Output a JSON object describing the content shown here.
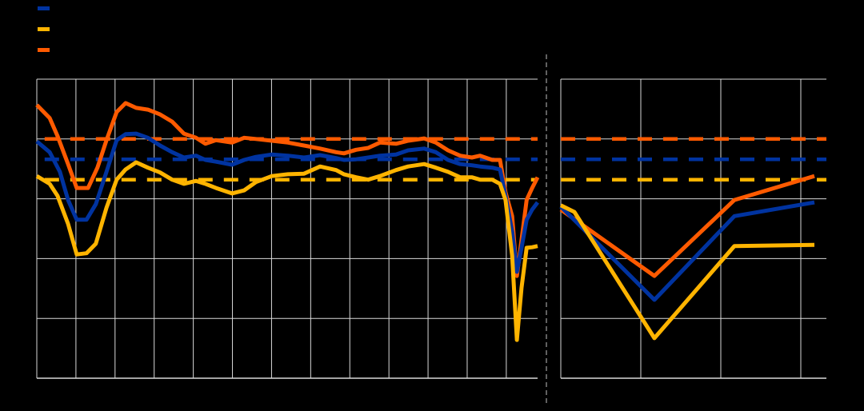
{
  "colors": {
    "background": "#000000",
    "grid": "#d9d9d9",
    "separator": "#808080"
  },
  "legend": [
    {
      "series": "blue",
      "color": "#0033a0"
    },
    {
      "series": "yellow",
      "color": "#ffb400"
    },
    {
      "series": "orange",
      "color": "#ff5a00"
    }
  ],
  "chart_data": [
    {
      "type": "line",
      "panel": "left",
      "grid": true,
      "xlim": [
        0,
        12.8
      ],
      "ylim": [
        0,
        5
      ],
      "x_gridlines": [
        0,
        1,
        2,
        3,
        4,
        5,
        6,
        7,
        8,
        9,
        10,
        11,
        12
      ],
      "y_gridlines": [
        0,
        1,
        2,
        3,
        4,
        5
      ],
      "series": [
        {
          "key": "orange",
          "color": "#ff5a00",
          "style": "solid",
          "x": [
            0,
            0.33,
            0.53,
            0.8,
            1.02,
            1.31,
            1.55,
            1.78,
            2.04,
            2.27,
            2.54,
            2.84,
            3.15,
            3.46,
            3.76,
            4.07,
            4.31,
            4.58,
            4.99,
            5.3,
            5.6,
            6.01,
            6.42,
            6.83,
            7.24,
            7.65,
            7.85,
            8.16,
            8.47,
            8.77,
            9.18,
            9.49,
            9.9,
            10.2,
            10.51,
            10.82,
            11.12,
            11.33,
            11.64,
            11.84,
            11.98,
            12.15,
            12.27,
            12.39,
            12.52,
            12.66,
            12.8
          ],
          "y": [
            4.57,
            4.35,
            4.05,
            3.58,
            3.18,
            3.18,
            3.52,
            3.98,
            4.45,
            4.6,
            4.52,
            4.49,
            4.41,
            4.29,
            4.09,
            4.02,
            3.92,
            3.98,
            3.94,
            4.02,
            4.0,
            3.97,
            3.94,
            3.89,
            3.84,
            3.78,
            3.76,
            3.82,
            3.85,
            3.94,
            3.92,
            3.97,
            4.01,
            3.94,
            3.81,
            3.72,
            3.69,
            3.72,
            3.65,
            3.65,
            3.11,
            2.71,
            1.71,
            2.31,
            2.98,
            3.18,
            3.36
          ]
        },
        {
          "key": "blue",
          "color": "#0033a0",
          "style": "solid",
          "x": [
            0,
            0.33,
            0.59,
            0.8,
            1.02,
            1.27,
            1.51,
            1.78,
            2.04,
            2.27,
            2.54,
            2.84,
            3.15,
            3.46,
            3.76,
            4.07,
            4.31,
            4.58,
            4.99,
            5.3,
            5.6,
            6.01,
            6.42,
            6.83,
            7.24,
            7.65,
            7.85,
            8.16,
            8.47,
            8.77,
            9.18,
            9.49,
            9.9,
            10.2,
            10.51,
            10.82,
            11.12,
            11.33,
            11.64,
            11.84,
            11.98,
            12.15,
            12.27,
            12.39,
            12.52,
            12.66,
            12.8
          ],
          "y": [
            3.96,
            3.78,
            3.45,
            2.98,
            2.65,
            2.65,
            2.91,
            3.45,
            3.98,
            4.08,
            4.09,
            4.02,
            3.89,
            3.78,
            3.69,
            3.72,
            3.65,
            3.62,
            3.57,
            3.65,
            3.7,
            3.74,
            3.72,
            3.69,
            3.73,
            3.68,
            3.65,
            3.66,
            3.69,
            3.72,
            3.74,
            3.81,
            3.84,
            3.78,
            3.65,
            3.58,
            3.56,
            3.54,
            3.52,
            3.49,
            3.05,
            2.45,
            1.78,
            2.18,
            2.65,
            2.82,
            2.94
          ]
        },
        {
          "key": "yellow",
          "color": "#ffb400",
          "style": "solid",
          "x": [
            0,
            0.33,
            0.53,
            0.8,
            1.02,
            1.27,
            1.51,
            1.78,
            2.04,
            2.27,
            2.54,
            2.84,
            3.15,
            3.46,
            3.76,
            4.07,
            4.31,
            4.58,
            4.99,
            5.3,
            5.6,
            6.01,
            6.42,
            6.83,
            7.24,
            7.65,
            7.85,
            8.16,
            8.47,
            8.77,
            9.18,
            9.49,
            9.9,
            10.2,
            10.51,
            10.82,
            11.12,
            11.33,
            11.64,
            11.84,
            11.98,
            12.15,
            12.27,
            12.39,
            12.52,
            12.66,
            12.8
          ],
          "y": [
            3.38,
            3.25,
            3.05,
            2.58,
            2.07,
            2.09,
            2.25,
            2.85,
            3.32,
            3.49,
            3.61,
            3.52,
            3.44,
            3.32,
            3.25,
            3.3,
            3.25,
            3.18,
            3.09,
            3.14,
            3.28,
            3.38,
            3.41,
            3.42,
            3.54,
            3.48,
            3.41,
            3.36,
            3.32,
            3.38,
            3.48,
            3.54,
            3.58,
            3.52,
            3.45,
            3.36,
            3.36,
            3.32,
            3.32,
            3.25,
            2.98,
            2.05,
            0.64,
            1.51,
            2.18,
            2.19,
            2.21
          ]
        },
        {
          "key": "orange-ref",
          "color": "#ff5a00",
          "style": "dashed",
          "x": [
            0.2,
            12.8
          ],
          "y": [
            4.0,
            4.0
          ]
        },
        {
          "key": "blue-ref",
          "color": "#0033a0",
          "style": "dashed",
          "x": [
            0.2,
            12.8
          ],
          "y": [
            3.66,
            3.66
          ]
        },
        {
          "key": "yellow-ref",
          "color": "#ffb400",
          "style": "dashed",
          "x": [
            0.2,
            12.8
          ],
          "y": [
            3.32,
            3.32
          ]
        }
      ]
    },
    {
      "type": "line",
      "panel": "right",
      "grid": true,
      "xlim": [
        0,
        3.32
      ],
      "ylim": [
        0,
        5
      ],
      "x_gridlines": [
        0,
        1,
        2,
        3
      ],
      "y_gridlines": [
        0,
        1,
        2,
        3,
        4,
        5
      ],
      "series": [
        {
          "key": "orange",
          "color": "#ff5a00",
          "style": "solid",
          "x": [
            0,
            1.17,
            2.17,
            3.17
          ],
          "y": [
            2.82,
            1.71,
            2.98,
            3.38
          ]
        },
        {
          "key": "blue",
          "color": "#0033a0",
          "style": "solid",
          "x": [
            0,
            1.17,
            2.17,
            3.17
          ],
          "y": [
            2.87,
            1.31,
            2.71,
            2.94
          ]
        },
        {
          "key": "yellow",
          "color": "#ffb400",
          "style": "solid",
          "x": [
            0,
            0.17,
            1.17,
            2.17,
            3.17
          ],
          "y": [
            2.89,
            2.78,
            0.67,
            2.21,
            2.23
          ]
        },
        {
          "key": "orange-ref",
          "color": "#ff5a00",
          "style": "dashed",
          "x": [
            0,
            3.32
          ],
          "y": [
            4.0,
            4.0
          ]
        },
        {
          "key": "blue-ref",
          "color": "#0033a0",
          "style": "dashed",
          "x": [
            0,
            3.32
          ],
          "y": [
            3.66,
            3.66
          ]
        },
        {
          "key": "yellow-ref",
          "color": "#ffb400",
          "style": "dashed",
          "x": [
            0,
            3.32
          ],
          "y": [
            3.32,
            3.32
          ]
        }
      ]
    }
  ]
}
